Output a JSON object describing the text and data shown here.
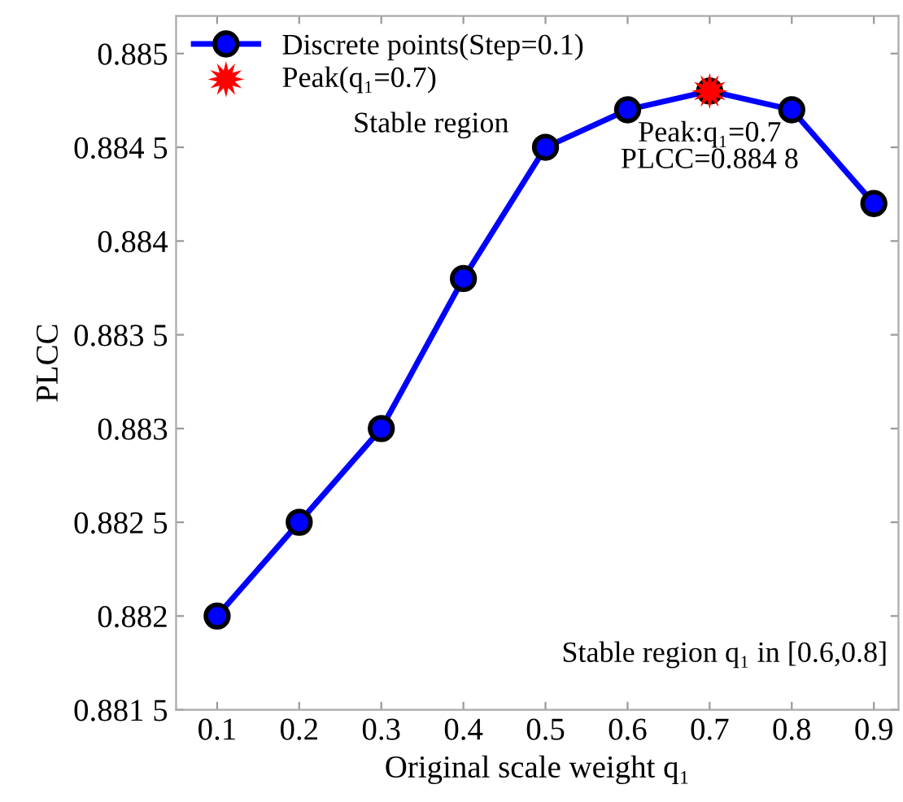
{
  "chart_data": {
    "type": "line",
    "xlabel": "Original scale weight q₁",
    "ylabel": "PLCC",
    "x": [
      0.1,
      0.2,
      0.3,
      0.4,
      0.5,
      0.6,
      0.7,
      0.8,
      0.9
    ],
    "series": [
      {
        "name": "Discrete points(Step=0.1)",
        "color": "#0000ff",
        "marker": "circle",
        "values": [
          0.882,
          0.8825,
          0.883,
          0.8838,
          0.8845,
          0.8847,
          0.8848,
          0.8847,
          0.8842
        ]
      },
      {
        "name": "Peak(q₁=0.7)",
        "color": "#ff0000",
        "type": "scatter",
        "marker": "star",
        "x": [
          0.7
        ],
        "values": [
          0.8848
        ]
      }
    ],
    "annotations": [
      "Stable region",
      {
        "text": "Peak:q₁=0.7\nPLCC=0.884 8",
        "x": 0.7,
        "y": 0.8848
      },
      "Stable region q₁ in [0.6,0.8]"
    ],
    "xlim": [
      0.05,
      0.93
    ],
    "ylim": [
      0.8815,
      0.8852
    ],
    "xticks": [
      0.1,
      0.2,
      0.3,
      0.4,
      0.5,
      0.6,
      0.7,
      0.8,
      0.9
    ],
    "yticks": [
      {
        "value": 0.8815,
        "label": "0.881 5"
      },
      0.882,
      {
        "value": 0.8825,
        "label": "0.882 5"
      },
      0.883,
      {
        "value": 0.8835,
        "label": "0.883 5"
      },
      0.884,
      {
        "value": 0.8845,
        "label": "0.884 5"
      },
      0.885
    ],
    "grid": false,
    "legend": "top left",
    "line_style": "solid"
  }
}
